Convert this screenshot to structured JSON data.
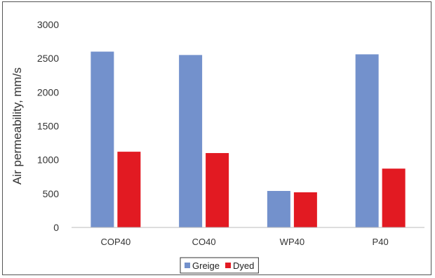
{
  "chart_data": {
    "type": "bar",
    "categories": [
      "COP40",
      "CO40",
      "WP40",
      "P40"
    ],
    "series": [
      {
        "name": "Greige",
        "values": [
          2600,
          2550,
          540,
          2560
        ],
        "color": "#7391cc"
      },
      {
        "name": "Dyed",
        "values": [
          1120,
          1100,
          520,
          870
        ],
        "color": "#e21a22"
      }
    ],
    "title": "",
    "xlabel": "",
    "ylabel": "Air permeability, mm/s",
    "ylim": [
      0,
      3000
    ],
    "yticks": [
      0,
      500,
      1000,
      1500,
      2000,
      2500,
      3000
    ],
    "grid": false,
    "legend_position": "bottom-center"
  }
}
